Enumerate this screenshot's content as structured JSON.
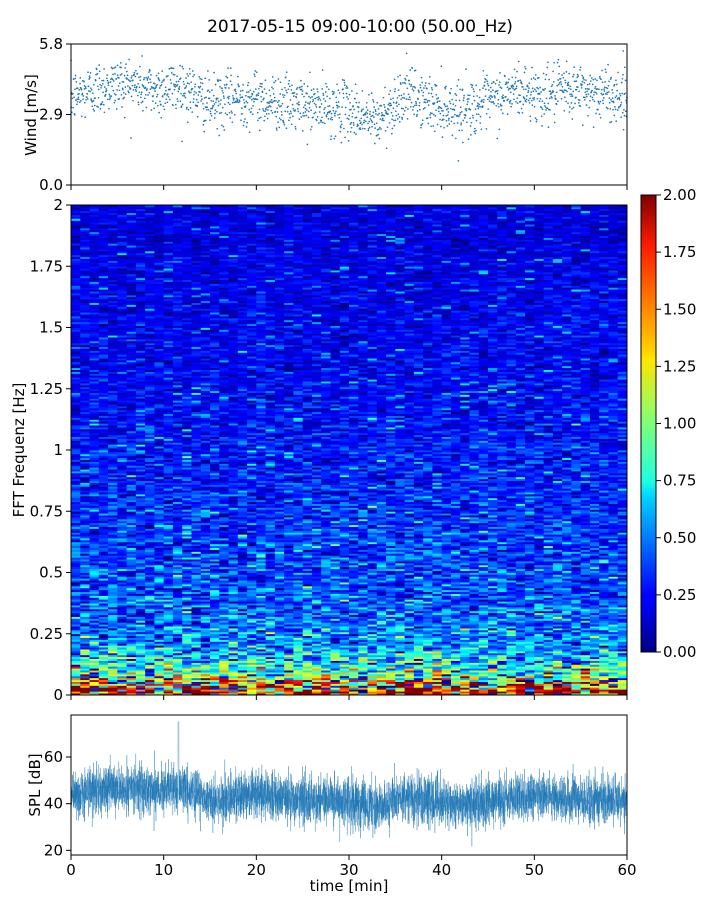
{
  "figure": {
    "title": "2017-05-15 09:00-10:00 (50.00_Hz)"
  },
  "chart_data": [
    {
      "id": "wind",
      "type": "scatter",
      "ylabel": "Wind [m/s]",
      "xlabel": "",
      "xlim": [
        0,
        60
      ],
      "ylim": [
        0.0,
        5.8
      ],
      "yticks": [
        "0.0",
        "2.9",
        "5.8"
      ],
      "xticks": [
        0,
        10,
        20,
        30,
        40,
        50,
        60
      ],
      "show_xticklabels": false,
      "color": "#1f77b4",
      "trend": {
        "x": [
          0,
          3,
          6,
          9,
          12,
          15,
          18,
          21,
          24,
          27,
          30,
          33,
          36,
          39,
          42,
          45,
          48,
          51,
          54,
          57,
          60
        ],
        "y": [
          3.6,
          4.0,
          4.2,
          3.9,
          4.1,
          3.3,
          3.6,
          3.5,
          3.3,
          3.2,
          3.1,
          2.6,
          3.8,
          3.3,
          3.1,
          3.4,
          3.9,
          3.7,
          3.9,
          3.8,
          3.6
        ]
      },
      "spread_m_s": 0.55,
      "approx_point_count": 1800
    },
    {
      "id": "spectrogram",
      "type": "heatmap",
      "ylabel": "FFT Frequenz [Hz]",
      "xlabel": "",
      "xlim": [
        0,
        60
      ],
      "ylim": [
        0,
        2
      ],
      "yticks": [
        "0",
        "0.25",
        "0.5",
        "0.75",
        "1",
        "1.25",
        "1.5",
        "1.75",
        "2"
      ],
      "xticks": [
        0,
        10,
        20,
        30,
        40,
        50,
        60
      ],
      "show_xticklabels": false,
      "colormap": "jet",
      "colorbar": {
        "vmin": 0.0,
        "vmax": 2.0,
        "ticks": [
          "0.00",
          "0.25",
          "0.50",
          "0.75",
          "1.00",
          "1.25",
          "1.50",
          "1.75",
          "2.00"
        ]
      },
      "freq_bins": 256,
      "time_bins": 60,
      "mean_level_by_freq": {
        "freq_hz": [
          0.0,
          0.02,
          0.04,
          0.06,
          0.1,
          0.15,
          0.2,
          0.3,
          0.4,
          0.5,
          0.6,
          0.75,
          1.0,
          1.25,
          1.5,
          1.75,
          2.0
        ],
        "level": [
          1.55,
          1.75,
          1.45,
          1.05,
          0.8,
          0.65,
          0.55,
          0.45,
          0.4,
          0.38,
          0.36,
          0.32,
          0.28,
          0.24,
          0.22,
          0.2,
          0.18
        ]
      }
    },
    {
      "id": "spl",
      "type": "line",
      "ylabel": "SPL [dB]",
      "xlabel": "time [min]",
      "xlim": [
        0,
        60
      ],
      "ylim": [
        18,
        78
      ],
      "yticks": [
        "20",
        "40",
        "60"
      ],
      "xticks": [
        "0",
        "10",
        "20",
        "30",
        "40",
        "50",
        "60"
      ],
      "color": "#1f77b4",
      "trend": {
        "x": [
          0,
          3,
          6,
          9,
          12,
          15,
          18,
          21,
          24,
          27,
          30,
          33,
          36,
          39,
          42,
          45,
          48,
          51,
          54,
          57,
          60
        ],
        "y": [
          43,
          46,
          47,
          46,
          47,
          41,
          43,
          44,
          42,
          42,
          41,
          38,
          43,
          41,
          39,
          41,
          43,
          43,
          42,
          42,
          42
        ]
      },
      "spread_db": 5,
      "peak": {
        "x": 11.6,
        "y": 75
      },
      "approx_sample_count": 6000
    }
  ]
}
